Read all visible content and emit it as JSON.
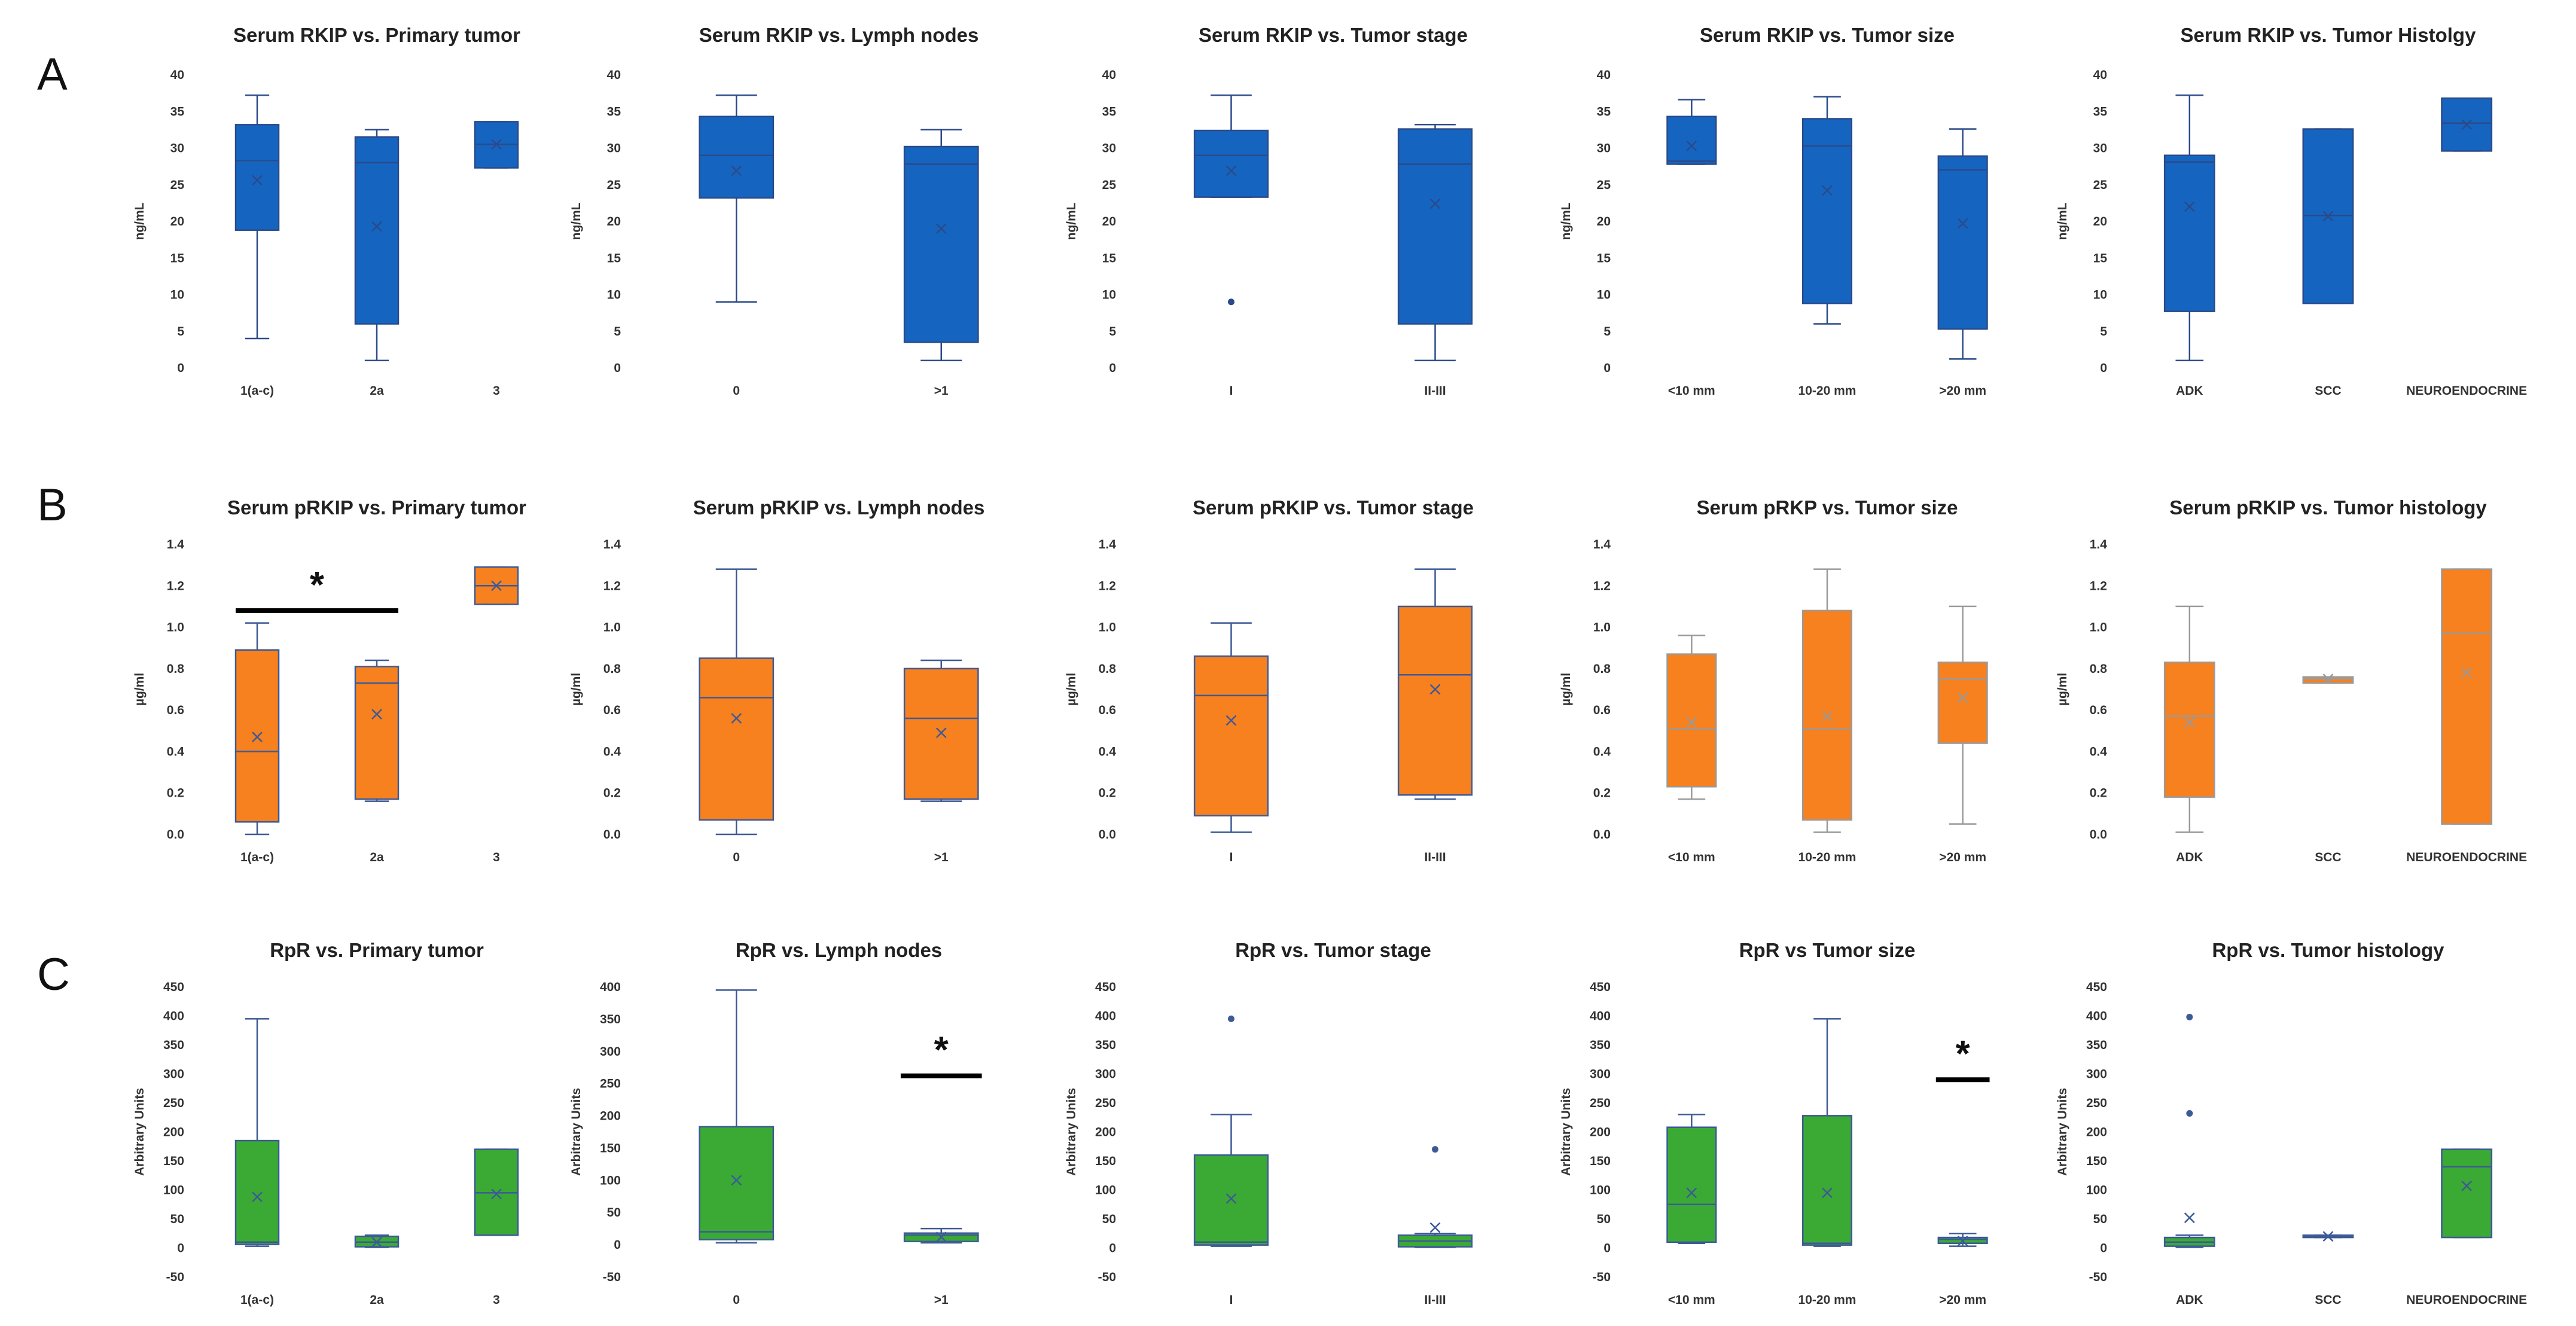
{
  "figure": {
    "panels": [
      {
        "label": "A"
      },
      {
        "label": "B"
      },
      {
        "label": "C"
      }
    ]
  },
  "chart_data": [
    {
      "type": "box",
      "row": "A",
      "col": 1,
      "title": "Serum RKIP vs. Primary tumor",
      "ylabel": "ng/mL",
      "ylim": [
        0,
        40
      ],
      "yticks": [
        0,
        5,
        10,
        15,
        20,
        25,
        30,
        35,
        40
      ],
      "color": "#1565c0",
      "line_color": "#2a4a8a",
      "categories": [
        "1(a-c)",
        "2a",
        "3"
      ],
      "boxes": [
        {
          "min": 4,
          "q1": 18.8,
          "median": 28.3,
          "q3": 33.2,
          "max": 37.2,
          "mean": 25.6
        },
        {
          "min": 1,
          "q1": 6,
          "median": 28,
          "q3": 31.5,
          "max": 32.5,
          "mean": 19.3
        },
        {
          "min": 27.3,
          "q1": 27.3,
          "median": 30.5,
          "q3": 33.6,
          "max": 33.6,
          "mean": 30.5
        }
      ]
    },
    {
      "type": "box",
      "row": "A",
      "col": 2,
      "title": "Serum RKIP vs. Lymph nodes",
      "ylabel": "ng/mL",
      "ylim": [
        0,
        40
      ],
      "yticks": [
        0,
        5,
        10,
        15,
        20,
        25,
        30,
        35,
        40
      ],
      "color": "#1565c0",
      "line_color": "#2a4a8a",
      "categories": [
        "0",
        ">1"
      ],
      "boxes": [
        {
          "min": 9,
          "q1": 23.2,
          "median": 29,
          "q3": 34.3,
          "max": 37.2,
          "mean": 26.9
        },
        {
          "min": 1,
          "q1": 3.5,
          "median": 27.8,
          "q3": 30.2,
          "max": 32.5,
          "mean": 19
        }
      ]
    },
    {
      "type": "box",
      "row": "A",
      "col": 3,
      "title": "Serum RKIP vs. Tumor stage",
      "ylabel": "ng/mL",
      "ylim": [
        0,
        40
      ],
      "yticks": [
        0,
        5,
        10,
        15,
        20,
        25,
        30,
        35,
        40
      ],
      "color": "#1565c0",
      "line_color": "#2a4a8a",
      "categories": [
        "I",
        "II-III"
      ],
      "boxes": [
        {
          "min": 23.3,
          "q1": 23.3,
          "median": 29,
          "q3": 32.4,
          "max": 37.2,
          "mean": 26.9,
          "outliers": [
            9
          ]
        },
        {
          "min": 1,
          "q1": 6,
          "median": 27.8,
          "q3": 32.6,
          "max": 33.2,
          "mean": 22.4
        }
      ]
    },
    {
      "type": "box",
      "row": "A",
      "col": 4,
      "title": "Serum RKIP vs. Tumor size",
      "ylabel": "ng/mL",
      "ylim": [
        0,
        40
      ],
      "yticks": [
        0,
        5,
        10,
        15,
        20,
        25,
        30,
        35,
        40
      ],
      "color": "#1565c0",
      "line_color": "#2a4a8a",
      "categories": [
        "<10 mm",
        "10-20 mm",
        ">20 mm"
      ],
      "boxes": [
        {
          "min": 27.8,
          "q1": 27.8,
          "median": 28.2,
          "q3": 34.3,
          "max": 36.6,
          "mean": 30.3
        },
        {
          "min": 6,
          "q1": 8.8,
          "median": 30.3,
          "q3": 34,
          "max": 37,
          "mean": 24.2
        },
        {
          "min": 1.2,
          "q1": 5.3,
          "median": 27,
          "q3": 28.9,
          "max": 32.6,
          "mean": 19.7
        }
      ]
    },
    {
      "type": "box",
      "row": "A",
      "col": 5,
      "title": "Serum RKIP vs. Tumor Histolgy",
      "ylabel": "ng/mL",
      "ylim": [
        0,
        40
      ],
      "yticks": [
        0,
        5,
        10,
        15,
        20,
        25,
        30,
        35,
        40
      ],
      "color": "#1565c0",
      "line_color": "#2a4a8a",
      "categories": [
        "ADK",
        "SCC",
        "NEUROENDOCRINE"
      ],
      "boxes": [
        {
          "min": 1,
          "q1": 7.7,
          "median": 28.1,
          "q3": 29,
          "max": 37.2,
          "mean": 22
        },
        {
          "min": 8.8,
          "q1": 8.8,
          "median": 20.8,
          "q3": 32.6,
          "max": 32.6,
          "mean": 20.7
        },
        {
          "min": 29.6,
          "q1": 29.6,
          "median": 33.4,
          "q3": 36.8,
          "max": 36.8,
          "mean": 33.2
        }
      ]
    },
    {
      "type": "box",
      "row": "B",
      "col": 1,
      "title": "Serum pRKIP vs. Primary tumor",
      "ylabel": "µg/ml",
      "ylim": [
        0,
        1.4
      ],
      "yticks": [
        "0.0",
        "0.2",
        "0.4",
        "0.6",
        "0.8",
        "1.0",
        "1.2",
        "1.4"
      ],
      "color": "#f7801f",
      "line_color": "#3d5a96",
      "categories": [
        "1(a-c)",
        "2a",
        "3"
      ],
      "boxes": [
        {
          "min": 0,
          "q1": 0.06,
          "median": 0.4,
          "q3": 0.89,
          "max": 1.02,
          "mean": 0.47
        },
        {
          "min": 0.16,
          "q1": 0.17,
          "median": 0.73,
          "q3": 0.81,
          "max": 0.84,
          "mean": 0.58
        },
        {
          "min": 1.11,
          "q1": 1.11,
          "median": 1.2,
          "q3": 1.29,
          "max": 1.29,
          "mean": 1.2
        }
      ],
      "annotations": [
        {
          "type": "bracket",
          "from": 0,
          "to": 1,
          "y": 1.08,
          "text": "*"
        }
      ]
    },
    {
      "type": "box",
      "row": "B",
      "col": 2,
      "title": "Serum pRKIP vs. Lymph nodes",
      "ylabel": "µg/ml",
      "ylim": [
        0,
        1.4
      ],
      "yticks": [
        "0.0",
        "0.2",
        "0.4",
        "0.6",
        "0.8",
        "1.0",
        "1.2",
        "1.4"
      ],
      "color": "#f7801f",
      "line_color": "#3d5a96",
      "categories": [
        "0",
        ">1"
      ],
      "boxes": [
        {
          "min": 0,
          "q1": 0.07,
          "median": 0.66,
          "q3": 0.85,
          "max": 1.28,
          "mean": 0.56
        },
        {
          "min": 0.16,
          "q1": 0.17,
          "median": 0.56,
          "q3": 0.8,
          "max": 0.84,
          "mean": 0.49
        }
      ]
    },
    {
      "type": "box",
      "row": "B",
      "col": 3,
      "title": "Serum pRKIP vs. Tumor stage",
      "ylabel": "µg/ml",
      "ylim": [
        0,
        1.4
      ],
      "yticks": [
        "0.0",
        "0.2",
        "0.4",
        "0.6",
        "0.8",
        "1.0",
        "1.2",
        "1.4"
      ],
      "color": "#f7801f",
      "line_color": "#3d5a96",
      "categories": [
        "I",
        "II-III"
      ],
      "boxes": [
        {
          "min": 0.01,
          "q1": 0.09,
          "median": 0.67,
          "q3": 0.86,
          "max": 1.02,
          "mean": 0.55
        },
        {
          "min": 0.17,
          "q1": 0.19,
          "median": 0.77,
          "q3": 1.1,
          "max": 1.28,
          "mean": 0.7
        }
      ]
    },
    {
      "type": "box",
      "row": "B",
      "col": 4,
      "title": "Serum pRKP vs. Tumor size",
      "ylabel": "µg/ml",
      "ylim": [
        0,
        1.4
      ],
      "yticks": [
        "0.0",
        "0.2",
        "0.4",
        "0.6",
        "0.8",
        "1.0",
        "1.2",
        "1.4"
      ],
      "color": "#f7801f",
      "line_color": "#9a9a9a",
      "categories": [
        "<10 mm",
        "10-20 mm",
        ">20 mm"
      ],
      "boxes": [
        {
          "min": 0.17,
          "q1": 0.23,
          "median": 0.51,
          "q3": 0.87,
          "max": 0.96,
          "mean": 0.54
        },
        {
          "min": 0.01,
          "q1": 0.07,
          "median": 0.51,
          "q3": 1.08,
          "max": 1.28,
          "mean": 0.57
        },
        {
          "min": 0.05,
          "q1": 0.44,
          "median": 0.75,
          "q3": 0.83,
          "max": 1.1,
          "mean": 0.66
        }
      ]
    },
    {
      "type": "box",
      "row": "B",
      "col": 5,
      "title": "Serum pRKIP vs. Tumor histology",
      "ylabel": "µg/ml",
      "ylim": [
        0,
        1.4
      ],
      "yticks": [
        "0.0",
        "0.2",
        "0.4",
        "0.6",
        "0.8",
        "1.0",
        "1.2",
        "1.4"
      ],
      "color": "#f7801f",
      "line_color": "#9a9a9a",
      "categories": [
        "ADK",
        "SCC",
        "NEUROENDOCRINE"
      ],
      "boxes": [
        {
          "min": 0.01,
          "q1": 0.18,
          "median": 0.57,
          "q3": 0.83,
          "max": 1.1,
          "mean": 0.54
        },
        {
          "min": 0.73,
          "q1": 0.73,
          "median": 0.75,
          "q3": 0.76,
          "max": 0.76,
          "mean": 0.75
        },
        {
          "min": 0.05,
          "q1": 0.05,
          "median": 0.97,
          "q3": 1.28,
          "max": 1.28,
          "mean": 0.78
        }
      ]
    },
    {
      "type": "box",
      "row": "C",
      "col": 1,
      "title": "RpR vs. Primary tumor",
      "ylabel": "Arbitrary Units",
      "ylim": [
        -50,
        450
      ],
      "yticks": [
        -50,
        0,
        50,
        100,
        150,
        200,
        250,
        300,
        350,
        400,
        450
      ],
      "color": "#3aaa35",
      "line_color": "#3d5a96",
      "categories": [
        "1(a-c)",
        "2a",
        "3"
      ],
      "boxes": [
        {
          "min": 3,
          "q1": 6,
          "median": 10,
          "q3": 185,
          "max": 395,
          "mean": 88
        },
        {
          "min": 1,
          "q1": 2,
          "median": 10,
          "q3": 20,
          "max": 22,
          "mean": 10
        },
        {
          "min": 22,
          "q1": 22,
          "median": 95,
          "q3": 170,
          "max": 170,
          "mean": 93
        }
      ]
    },
    {
      "type": "box",
      "row": "C",
      "col": 2,
      "title": "RpR vs. Lymph nodes",
      "ylabel": "Arbitrary Units",
      "ylim": [
        -50,
        400
      ],
      "yticks": [
        -50,
        0,
        50,
        100,
        150,
        200,
        250,
        300,
        350,
        400
      ],
      "color": "#3aaa35",
      "line_color": "#3d5a96",
      "categories": [
        "0",
        ">1"
      ],
      "boxes": [
        {
          "min": 3,
          "q1": 8,
          "median": 20,
          "q3": 183,
          "max": 395,
          "mean": 100
        },
        {
          "min": 3,
          "q1": 5,
          "median": 15,
          "q3": 18,
          "max": 25,
          "mean": 12
        }
      ],
      "annotations": [
        {
          "type": "marker",
          "at": 1,
          "y": 262,
          "text": "*"
        }
      ]
    },
    {
      "type": "box",
      "row": "C",
      "col": 3,
      "title": "RpR vs. Tumor stage",
      "ylabel": "Arbitrary Units",
      "ylim": [
        -50,
        450
      ],
      "yticks": [
        -50,
        0,
        50,
        100,
        150,
        200,
        250,
        300,
        350,
        400,
        450
      ],
      "color": "#3aaa35",
      "line_color": "#3d5a96",
      "categories": [
        "I",
        "II-III"
      ],
      "boxes": [
        {
          "min": 3,
          "q1": 5,
          "median": 10,
          "q3": 160,
          "max": 230,
          "mean": 85,
          "outliers": [
            395
          ]
        },
        {
          "min": 1,
          "q1": 2,
          "median": 12,
          "q3": 22,
          "max": 25,
          "mean": 35,
          "outliers": [
            170
          ]
        }
      ]
    },
    {
      "type": "box",
      "row": "C",
      "col": 4,
      "title": "RpR vs Tumor size",
      "ylabel": "Arbitrary Units",
      "ylim": [
        -50,
        450
      ],
      "yticks": [
        -50,
        0,
        50,
        100,
        150,
        200,
        250,
        300,
        350,
        400,
        450
      ],
      "color": "#3aaa35",
      "line_color": "#3d5a96",
      "categories": [
        "<10 mm",
        "10-20 mm",
        ">20 mm"
      ],
      "boxes": [
        {
          "min": 8,
          "q1": 10,
          "median": 75,
          "q3": 208,
          "max": 230,
          "mean": 95
        },
        {
          "min": 3,
          "q1": 5,
          "median": 8,
          "q3": 228,
          "max": 395,
          "mean": 95
        },
        {
          "min": 3,
          "q1": 8,
          "median": 15,
          "q3": 18,
          "max": 25,
          "mean": 12
        }
      ],
      "annotations": [
        {
          "type": "marker",
          "at": 2,
          "y": 290,
          "text": "*"
        }
      ]
    },
    {
      "type": "box",
      "row": "C",
      "col": 5,
      "title": "RpR vs. Tumor histology",
      "ylabel": "Arbitrary Units",
      "ylim": [
        -50,
        450
      ],
      "yticks": [
        -50,
        0,
        50,
        100,
        150,
        200,
        250,
        300,
        350,
        400,
        450
      ],
      "color": "#3aaa35",
      "line_color": "#3d5a96",
      "categories": [
        "ADK",
        "SCC",
        "NEUROENDOCRINE"
      ],
      "boxes": [
        {
          "min": 1,
          "q1": 3,
          "median": 10,
          "q3": 18,
          "max": 22,
          "mean": 52,
          "outliers": [
            232,
            398
          ]
        },
        {
          "min": 18,
          "q1": 18,
          "median": 20,
          "q3": 22,
          "max": 22,
          "mean": 20
        },
        {
          "min": 18,
          "q1": 18,
          "median": 140,
          "q3": 170,
          "max": 170,
          "mean": 107
        }
      ]
    }
  ]
}
